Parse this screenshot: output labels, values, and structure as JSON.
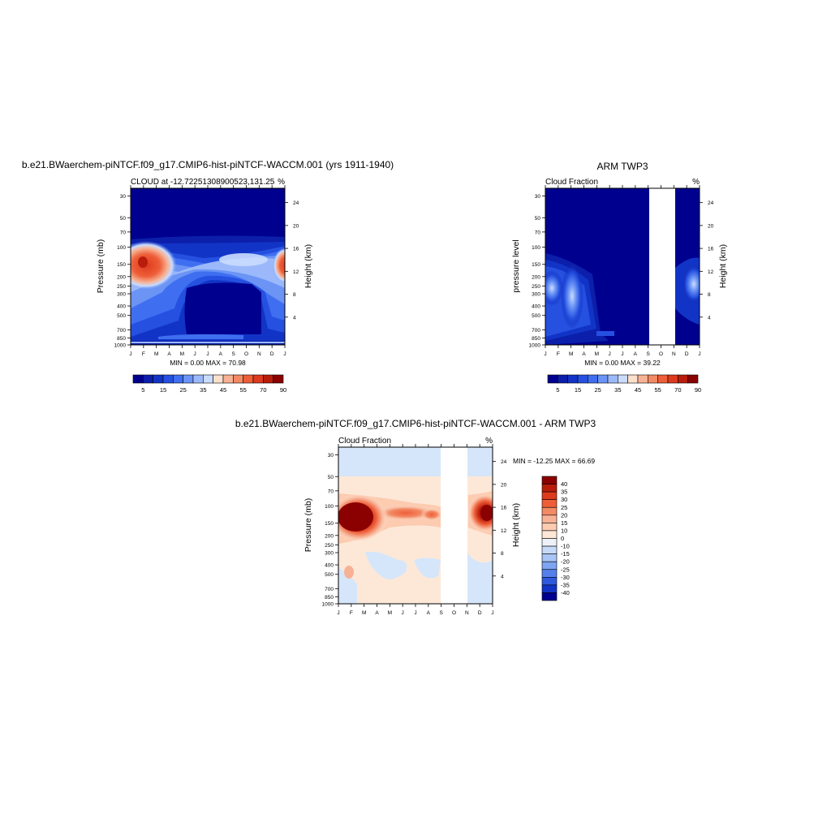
{
  "panels": [
    {
      "id": "model",
      "title": "b.e21.BWaerchem-piNTCF.f09_g17.CMIP6-hist-piNTCF-WACCM.001 (yrs 1911-1940)",
      "left_string": "CLOUD at -12.72251308900523,131.25",
      "right_string": "%",
      "ylabel_left": "Pressure (mb)",
      "ylabel_right": "Height (km)",
      "min_max": "MIN =   0.00 MAX =  70.98"
    },
    {
      "id": "obs",
      "title": "ARM TWP3",
      "left_string": "Cloud Fraction",
      "right_string": "%",
      "ylabel_left": "pressure level",
      "ylabel_right": "Height (km)",
      "min_max": "MIN =   0.00 MAX =  39.22"
    },
    {
      "id": "diff",
      "title": "b.e21.BWaerchem-piNTCF.f09_g17.CMIP6-hist-piNTCF-WACCM.001 - ARM TWP3",
      "left_string": "Cloud Fraction",
      "right_string": "%",
      "ylabel_left": "Pressure (mb)",
      "ylabel_right": "Height (km)",
      "min_max": "MIN = -12.25 MAX =  66.69"
    }
  ],
  "chart_data": [
    {
      "type": "heatmap",
      "id": "model",
      "x": [
        "J",
        "F",
        "M",
        "A",
        "M",
        "J",
        "J",
        "A",
        "S",
        "O",
        "N",
        "D",
        "J"
      ],
      "y_pressure_ticks": [
        30,
        50,
        70,
        100,
        150,
        200,
        250,
        300,
        400,
        500,
        700,
        850,
        1000
      ],
      "y_height_ticks": [
        4,
        8,
        12,
        16,
        20,
        24
      ],
      "colorbar_labels": [
        "5",
        "15",
        "25",
        "35",
        "45",
        "55",
        "70",
        "90"
      ],
      "colors": [
        "#00008f",
        "#0b1faa",
        "#1234c6",
        "#2550e0",
        "#3f6ff0",
        "#6b94f5",
        "#9bb9fa",
        "#cadcfd",
        "#fde0cc",
        "#f7b295",
        "#f28a65",
        "#ee5e38",
        "#dd3a1e",
        "#b81d0c",
        "#8b0000"
      ],
      "value_range": [
        0.0,
        70.98
      ]
    },
    {
      "type": "heatmap",
      "id": "obs",
      "x": [
        "J",
        "F",
        "M",
        "A",
        "M",
        "J",
        "J",
        "A",
        "S",
        "O",
        "N",
        "D",
        "J"
      ],
      "y_pressure_ticks": [
        30,
        50,
        70,
        100,
        150,
        200,
        250,
        300,
        400,
        500,
        700,
        850,
        1000
      ],
      "y_height_ticks": [
        4,
        8,
        12,
        16,
        20,
        24
      ],
      "colorbar_labels": [
        "5",
        "15",
        "25",
        "35",
        "45",
        "55",
        "70",
        "90"
      ],
      "colors": [
        "#00008f",
        "#0b1faa",
        "#1234c6",
        "#2550e0",
        "#3f6ff0",
        "#6b94f5",
        "#9bb9fa",
        "#cadcfd",
        "#fde0cc",
        "#f7b295",
        "#f28a65",
        "#ee5e38",
        "#dd3a1e",
        "#b81d0c",
        "#8b0000"
      ],
      "value_range": [
        0.0,
        39.22
      ],
      "missing_months": [
        "O"
      ]
    },
    {
      "type": "heatmap",
      "id": "diff",
      "x": [
        "J",
        "F",
        "M",
        "A",
        "M",
        "J",
        "J",
        "A",
        "S",
        "O",
        "N",
        "D",
        "J"
      ],
      "y_pressure_ticks": [
        30,
        50,
        70,
        100,
        150,
        200,
        250,
        300,
        400,
        500,
        700,
        850,
        1000
      ],
      "y_height_ticks": [
        4,
        8,
        12,
        16,
        20,
        24
      ],
      "colorbar_labels": [
        "40",
        "35",
        "30",
        "25",
        "20",
        "15",
        "10",
        "0",
        "-10",
        "-15",
        "-20",
        "-25",
        "-30",
        "-35",
        "-40"
      ],
      "colors": [
        "#8b0000",
        "#b81d0c",
        "#dd3a1e",
        "#ee5e38",
        "#f28a65",
        "#f7b295",
        "#fccbb0",
        "#fde8d8",
        "#eef2f8",
        "#c6daf8",
        "#a9c5f6",
        "#7ea5f2",
        "#5580ea",
        "#2f5add",
        "#1134c6",
        "#00008f"
      ],
      "value_range": [
        -12.25,
        66.69
      ],
      "missing_months": [
        "O"
      ]
    }
  ]
}
